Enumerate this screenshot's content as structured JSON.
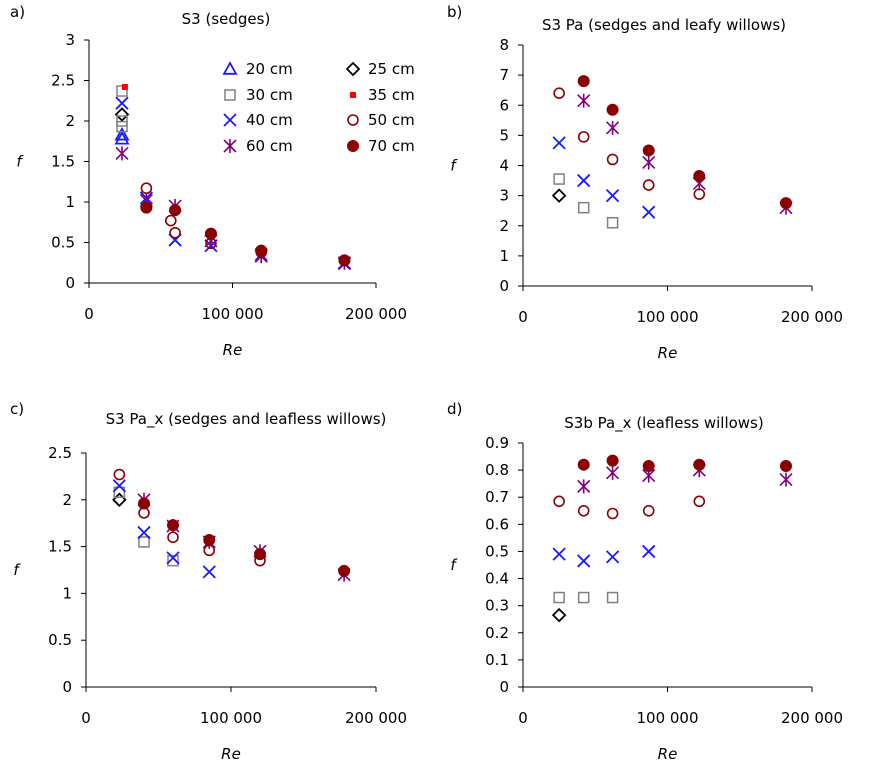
{
  "legend": {
    "entries": [
      {
        "label": "20 cm",
        "marker": "triangle"
      },
      {
        "label": "25 cm",
        "marker": "diamond"
      },
      {
        "label": "30 cm",
        "marker": "square"
      },
      {
        "label": "35 cm",
        "marker": "dash"
      },
      {
        "label": "40 cm",
        "marker": "x"
      },
      {
        "label": "50 cm",
        "marker": "circle-open"
      },
      {
        "label": "60 cm",
        "marker": "star"
      },
      {
        "label": "70 cm",
        "marker": "circle-filled"
      }
    ]
  },
  "colors": {
    "20 cm": "#1a1aff",
    "25 cm": "#000000",
    "30 cm": "#808080",
    "35 cm": "#ff0000",
    "40 cm": "#1a1aff",
    "50 cm": "#8b0000",
    "60 cm": "#800080",
    "70 cm": "#8b0000"
  },
  "chart_data": [
    {
      "panel": "a)",
      "type": "scatter",
      "title": "S3 (sedges)",
      "xlabel": "Re",
      "ylabel": "f",
      "xlim": [
        0,
        200000
      ],
      "ylim": [
        0,
        3
      ],
      "xticks": [
        0,
        100000,
        200000
      ],
      "xtick_labels": [
        "0",
        "100 000",
        "200 000"
      ],
      "yticks": [
        0,
        0.5,
        1,
        1.5,
        2,
        2.5,
        3
      ],
      "ytick_labels": [
        "0",
        "0.5",
        "1",
        "1.5",
        "2",
        "2.5",
        "3"
      ],
      "series": [
        {
          "name": "20 cm",
          "points": [
            [
              23000,
              1.83
            ],
            [
              23000,
              1.78
            ]
          ]
        },
        {
          "name": "25 cm",
          "points": [
            [
              23000,
              2.08
            ]
          ]
        },
        {
          "name": "30 cm",
          "points": [
            [
              23000,
              2.37
            ],
            [
              23000,
              2.0
            ],
            [
              23000,
              1.93
            ]
          ]
        },
        {
          "name": "35 cm",
          "points": [
            [
              25000,
              2.42
            ]
          ]
        },
        {
          "name": "40 cm",
          "points": [
            [
              23000,
              2.22
            ],
            [
              40000,
              1.05
            ],
            [
              60000,
              0.53
            ],
            [
              85000,
              0.46
            ],
            [
              120000,
              0.35
            ],
            [
              178000,
              0.24
            ]
          ]
        },
        {
          "name": "50 cm",
          "points": [
            [
              40000,
              1.17
            ],
            [
              57000,
              0.77
            ],
            [
              60000,
              0.62
            ],
            [
              85000,
              0.49
            ],
            [
              120000,
              0.38
            ],
            [
              178000,
              0.28
            ]
          ]
        },
        {
          "name": "60 cm",
          "points": [
            [
              23000,
              1.6
            ],
            [
              40000,
              1.02
            ],
            [
              60000,
              0.95
            ],
            [
              85000,
              0.52
            ],
            [
              120000,
              0.33
            ],
            [
              178000,
              0.25
            ]
          ]
        },
        {
          "name": "70 cm",
          "points": [
            [
              40000,
              0.93
            ],
            [
              60000,
              0.9
            ],
            [
              85000,
              0.61
            ],
            [
              120000,
              0.4
            ],
            [
              178000,
              0.28
            ]
          ]
        }
      ]
    },
    {
      "panel": "b)",
      "type": "scatter",
      "title": "S3 Pa (sedges and leafy willows)",
      "xlabel": "Re",
      "ylabel": "f",
      "xlim": [
        0,
        200000
      ],
      "ylim": [
        0,
        8
      ],
      "xticks": [
        0,
        100000,
        200000
      ],
      "xtick_labels": [
        "0",
        "100 000",
        "200 000"
      ],
      "yticks": [
        0,
        1,
        2,
        3,
        4,
        5,
        6,
        7,
        8
      ],
      "ytick_labels": [
        "0",
        "1",
        "2",
        "3",
        "4",
        "5",
        "6",
        "7",
        "8"
      ],
      "series": [
        {
          "name": "25 cm",
          "points": [
            [
              25000,
              3.0
            ]
          ]
        },
        {
          "name": "30 cm",
          "points": [
            [
              25000,
              3.55
            ],
            [
              42000,
              2.6
            ],
            [
              62000,
              2.1
            ]
          ]
        },
        {
          "name": "40 cm",
          "points": [
            [
              25000,
              4.75
            ],
            [
              42000,
              3.5
            ],
            [
              62000,
              3.0
            ],
            [
              87000,
              2.45
            ]
          ]
        },
        {
          "name": "50 cm",
          "points": [
            [
              25000,
              6.4
            ],
            [
              42000,
              4.95
            ],
            [
              62000,
              4.2
            ],
            [
              87000,
              3.35
            ],
            [
              122000,
              3.05
            ]
          ]
        },
        {
          "name": "60 cm",
          "points": [
            [
              42000,
              6.15
            ],
            [
              62000,
              5.25
            ],
            [
              87000,
              4.1
            ],
            [
              122000,
              3.4
            ],
            [
              182000,
              2.6
            ]
          ]
        },
        {
          "name": "70 cm",
          "points": [
            [
              42000,
              6.8
            ],
            [
              62000,
              5.85
            ],
            [
              87000,
              4.5
            ],
            [
              122000,
              3.65
            ],
            [
              182000,
              2.75
            ]
          ]
        }
      ]
    },
    {
      "panel": "c)",
      "type": "scatter",
      "title": "S3 Pa_x (sedges and leafless willows)",
      "xlabel": "Re",
      "ylabel": "f",
      "xlim": [
        0,
        200000
      ],
      "ylim": [
        0,
        2.5
      ],
      "xticks": [
        0,
        100000,
        200000
      ],
      "xtick_labels": [
        "0",
        "100 000",
        "200 000"
      ],
      "yticks": [
        0,
        0.5,
        1,
        1.5,
        2,
        2.5
      ],
      "ytick_labels": [
        "0",
        "0.5",
        "1",
        "1.5",
        "2",
        "2.5"
      ],
      "series": [
        {
          "name": "25 cm",
          "points": [
            [
              23000,
              2.0
            ]
          ]
        },
        {
          "name": "30 cm",
          "points": [
            [
              23000,
              2.08
            ],
            [
              40000,
              1.55
            ],
            [
              60000,
              1.35
            ]
          ]
        },
        {
          "name": "40 cm",
          "points": [
            [
              23000,
              2.15
            ],
            [
              40000,
              1.65
            ],
            [
              60000,
              1.38
            ],
            [
              85000,
              1.23
            ]
          ]
        },
        {
          "name": "50 cm",
          "points": [
            [
              23000,
              2.27
            ],
            [
              40000,
              1.86
            ],
            [
              60000,
              1.6
            ],
            [
              85000,
              1.46
            ],
            [
              120000,
              1.35
            ]
          ]
        },
        {
          "name": "60 cm",
          "points": [
            [
              40000,
              2.0
            ],
            [
              60000,
              1.72
            ],
            [
              85000,
              1.55
            ],
            [
              120000,
              1.45
            ],
            [
              178000,
              1.2
            ]
          ]
        },
        {
          "name": "70 cm",
          "points": [
            [
              40000,
              1.96
            ],
            [
              60000,
              1.73
            ],
            [
              85000,
              1.57
            ],
            [
              120000,
              1.42
            ],
            [
              178000,
              1.24
            ]
          ]
        }
      ]
    },
    {
      "panel": "d)",
      "type": "scatter",
      "title": "S3b Pa_x (leafless willows)",
      "xlabel": "Re",
      "ylabel": "f",
      "xlim": [
        0,
        200000
      ],
      "ylim": [
        0,
        0.9
      ],
      "xticks": [
        0,
        100000,
        200000
      ],
      "xtick_labels": [
        "0",
        "100 000",
        "200 000"
      ],
      "yticks": [
        0,
        0.1,
        0.2,
        0.3,
        0.4,
        0.5,
        0.6,
        0.7,
        0.8,
        0.9
      ],
      "ytick_labels": [
        "0",
        "0.1",
        "0.2",
        "0.3",
        "0.4",
        "0.5",
        "0.6",
        "0.7",
        "0.8",
        "0.9"
      ],
      "series": [
        {
          "name": "25 cm",
          "points": [
            [
              25000,
              0.265
            ]
          ]
        },
        {
          "name": "30 cm",
          "points": [
            [
              25000,
              0.33
            ],
            [
              42000,
              0.33
            ],
            [
              62000,
              0.33
            ]
          ]
        },
        {
          "name": "40 cm",
          "points": [
            [
              25000,
              0.49
            ],
            [
              42000,
              0.465
            ],
            [
              62000,
              0.48
            ],
            [
              87000,
              0.5
            ]
          ]
        },
        {
          "name": "50 cm",
          "points": [
            [
              25000,
              0.685
            ],
            [
              42000,
              0.65
            ],
            [
              62000,
              0.64
            ],
            [
              87000,
              0.65
            ],
            [
              122000,
              0.685
            ]
          ]
        },
        {
          "name": "60 cm",
          "points": [
            [
              42000,
              0.74
            ],
            [
              62000,
              0.79
            ],
            [
              87000,
              0.78
            ],
            [
              122000,
              0.8
            ],
            [
              182000,
              0.765
            ]
          ]
        },
        {
          "name": "70 cm",
          "points": [
            [
              42000,
              0.82
            ],
            [
              62000,
              0.835
            ],
            [
              87000,
              0.815
            ],
            [
              122000,
              0.82
            ],
            [
              182000,
              0.815
            ]
          ]
        }
      ]
    }
  ]
}
